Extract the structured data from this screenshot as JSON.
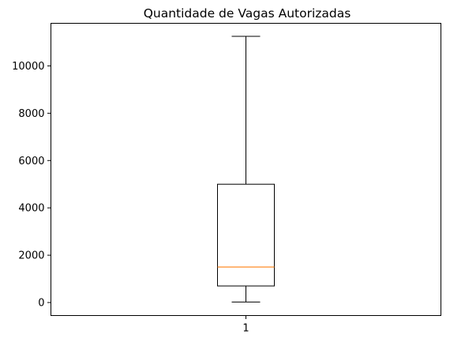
{
  "chart_data": {
    "type": "boxplot",
    "title": "Quantidade de Vagas Autorizadas",
    "xlabel": "",
    "ylabel": "",
    "ylim": [
      -550,
      11800
    ],
    "yticks": [
      0,
      2000,
      4000,
      6000,
      8000,
      10000
    ],
    "categories": [
      "1"
    ],
    "boxes": [
      {
        "category": "1",
        "whisker_low": 20,
        "q1": 700,
        "median": 1500,
        "q3": 5000,
        "whisker_high": 11250
      }
    ],
    "grid": false,
    "legend": "none",
    "colors": {
      "box": "#000000",
      "median": "#ff7f0e",
      "axes": "#000000"
    }
  }
}
